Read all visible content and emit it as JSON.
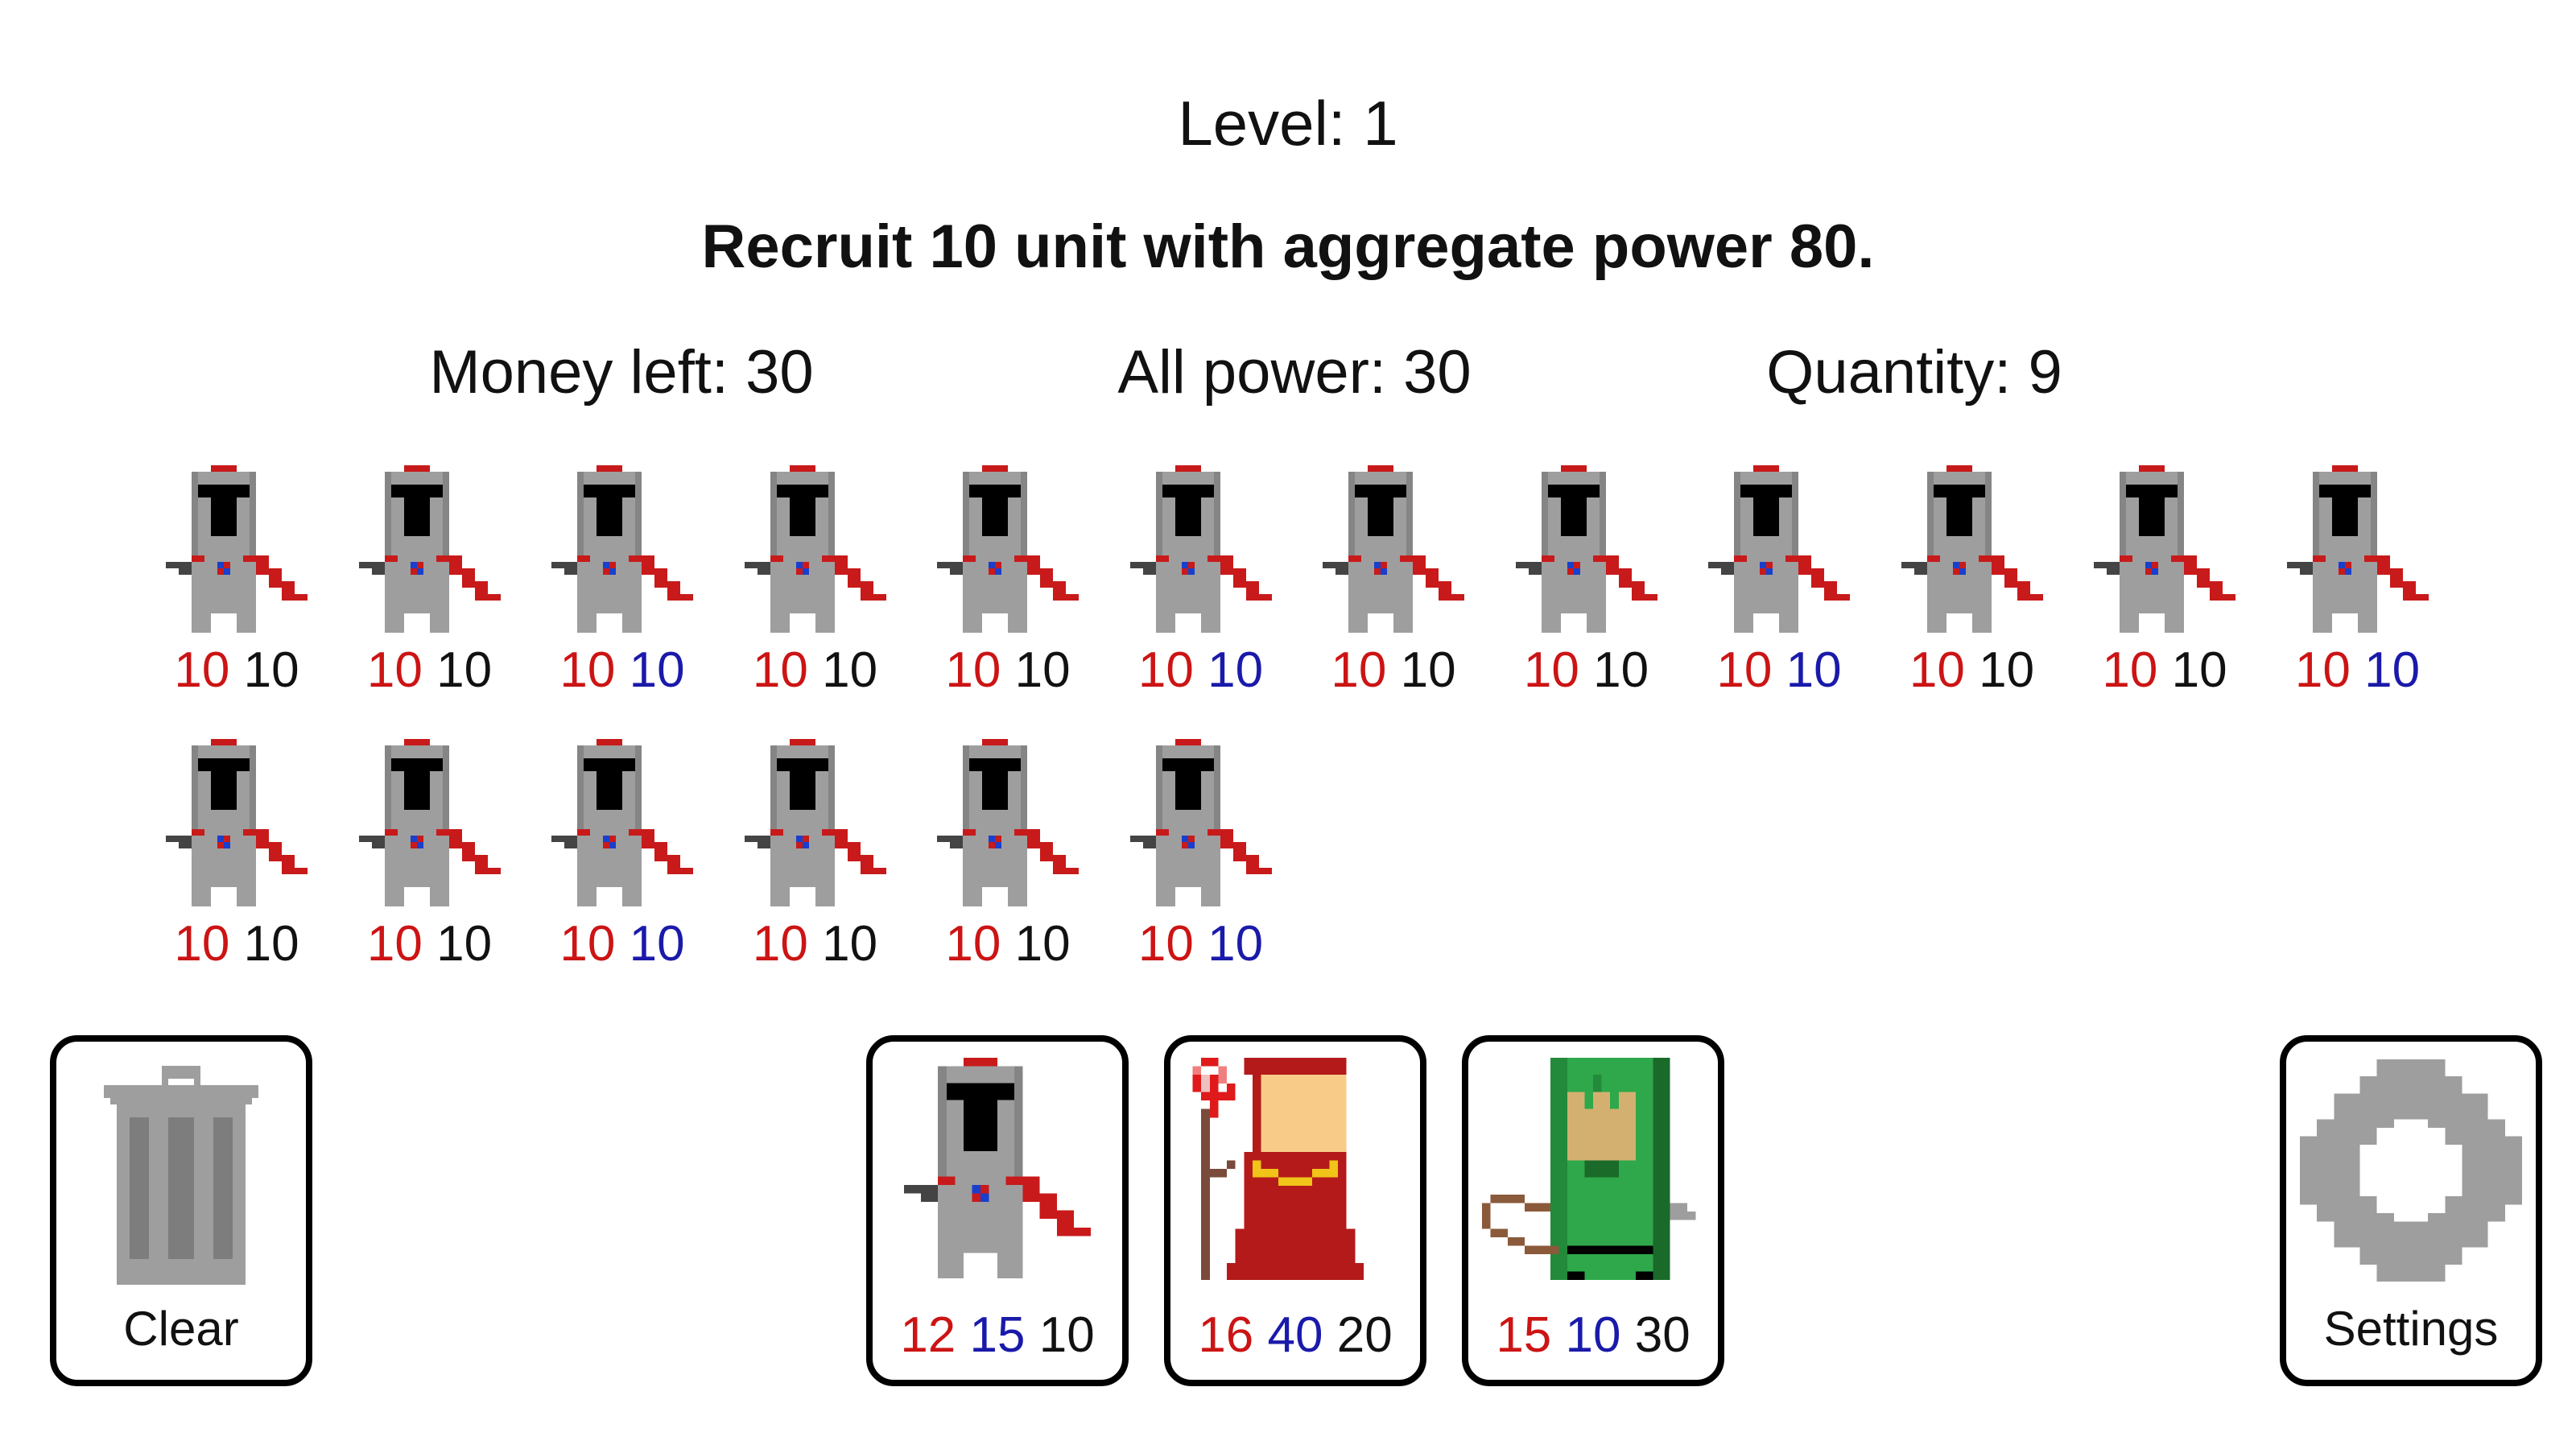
{
  "header": {
    "level": "Level: 1",
    "objective": "Recruit 10 unit with aggregate power 80."
  },
  "stats": {
    "money": "Money left: 30",
    "power": "All power: 30",
    "quantity": "Quantity: 9"
  },
  "army": [
    {
      "sprite": "knight-icon",
      "a": "10",
      "b": "10",
      "b_color": "black"
    },
    {
      "sprite": "knight-icon",
      "a": "10",
      "b": "10",
      "b_color": "black"
    },
    {
      "sprite": "knight-icon",
      "a": "10",
      "b": "10",
      "b_color": "blue"
    },
    {
      "sprite": "knight-icon",
      "a": "10",
      "b": "10",
      "b_color": "black"
    },
    {
      "sprite": "knight-icon",
      "a": "10",
      "b": "10",
      "b_color": "black"
    },
    {
      "sprite": "knight-icon",
      "a": "10",
      "b": "10",
      "b_color": "blue"
    },
    {
      "sprite": "knight-icon",
      "a": "10",
      "b": "10",
      "b_color": "black"
    },
    {
      "sprite": "knight-icon",
      "a": "10",
      "b": "10",
      "b_color": "black"
    },
    {
      "sprite": "knight-icon",
      "a": "10",
      "b": "10",
      "b_color": "blue"
    },
    {
      "sprite": "knight-icon",
      "a": "10",
      "b": "10",
      "b_color": "black"
    },
    {
      "sprite": "knight-icon",
      "a": "10",
      "b": "10",
      "b_color": "black"
    },
    {
      "sprite": "knight-icon",
      "a": "10",
      "b": "10",
      "b_color": "blue"
    },
    {
      "sprite": "knight-icon",
      "a": "10",
      "b": "10",
      "b_color": "black"
    },
    {
      "sprite": "knight-icon",
      "a": "10",
      "b": "10",
      "b_color": "black"
    },
    {
      "sprite": "knight-icon",
      "a": "10",
      "b": "10",
      "b_color": "blue"
    },
    {
      "sprite": "knight-icon",
      "a": "10",
      "b": "10",
      "b_color": "black"
    },
    {
      "sprite": "knight-icon",
      "a": "10",
      "b": "10",
      "b_color": "black"
    },
    {
      "sprite": "knight-icon",
      "a": "10",
      "b": "10",
      "b_color": "blue"
    }
  ],
  "shop": [
    {
      "sprite": "knight-icon",
      "cost": "12",
      "power": "15",
      "quantity": "10"
    },
    {
      "sprite": "mage-icon",
      "cost": "16",
      "power": "40",
      "quantity": "20"
    },
    {
      "sprite": "archer-icon",
      "cost": "15",
      "power": "10",
      "quantity": "30"
    }
  ],
  "controls": {
    "clear_label": "Clear",
    "settings_label": "Settings"
  },
  "colors": {
    "red": "#cc1414",
    "blue": "#1a1aaa",
    "black": "#111111"
  }
}
